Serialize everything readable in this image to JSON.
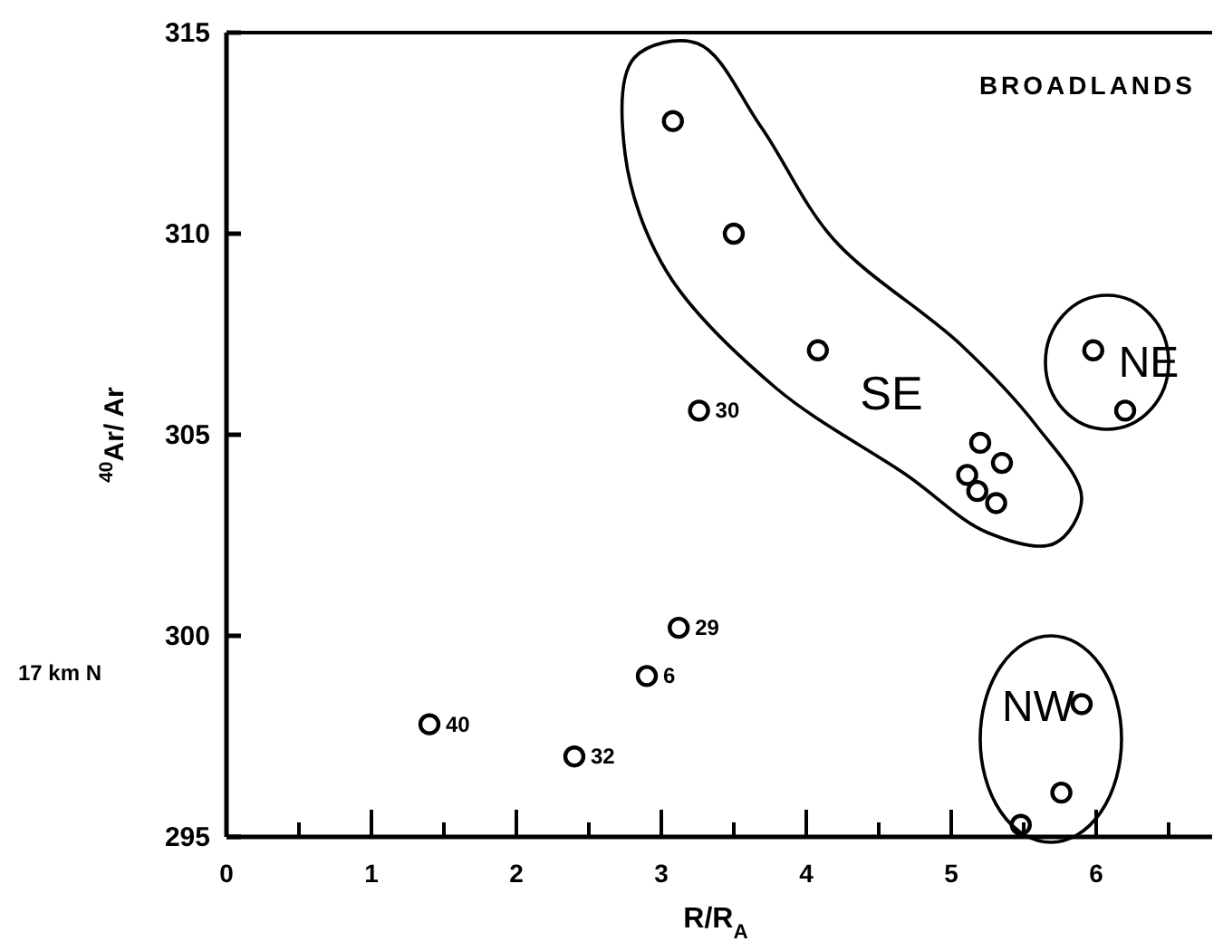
{
  "chart_data": {
    "type": "scatter",
    "title": "BROADLANDS",
    "xlabel": "R/R$_{A}$",
    "ylabel": "$^{40}$Ar/ Ar",
    "series": [
      {
        "color": "#000000",
        "x": [
          3.08,
          3.5,
          4.08,
          3.26,
          5.2,
          5.35,
          5.11,
          5.18,
          5.31,
          5.98,
          6.2,
          5.9,
          5.76,
          5.48,
          3.12,
          2.9,
          1.4,
          2.4
        ],
        "values": [
          312.8,
          310.0,
          307.1,
          305.6,
          304.8,
          304.3,
          304.0,
          303.6,
          303.3,
          307.1,
          305.6,
          298.3,
          296.1,
          295.3,
          300.2,
          299.0,
          297.8,
          297.0
        ]
      }
    ],
    "marker": "circle",
    "xlim": [
      0,
      6.8
    ],
    "xticks": [
      0,
      {
        "value": 0.5,
        "label": null
      },
      1,
      {
        "value": 1.5,
        "label": null
      },
      2,
      {
        "value": 2.5,
        "label": null
      },
      3,
      {
        "value": 3.5,
        "label": null
      },
      4,
      {
        "value": 4.5,
        "label": null
      },
      5,
      {
        "value": 5.5,
        "label": null
      },
      6,
      {
        "value": 6.5,
        "label": null
      }
    ],
    "ylim": [
      295,
      315
    ],
    "yticks": [
      295,
      300,
      305,
      310,
      315
    ],
    "annotations": [
      {
        "text": "30",
        "x": 3.26,
        "y": 305.6
      },
      {
        "text": "29",
        "x": 3.12,
        "y": 300.2
      },
      {
        "text": "6",
        "x": 2.9,
        "y": 299.0
      },
      {
        "text": "40",
        "x": 1.4,
        "y": 297.8
      },
      {
        "text": "32",
        "x": 2.4,
        "y": 297.0
      },
      "SE",
      "NE",
      "NW",
      "17 km N"
    ],
    "grid": false
  }
}
